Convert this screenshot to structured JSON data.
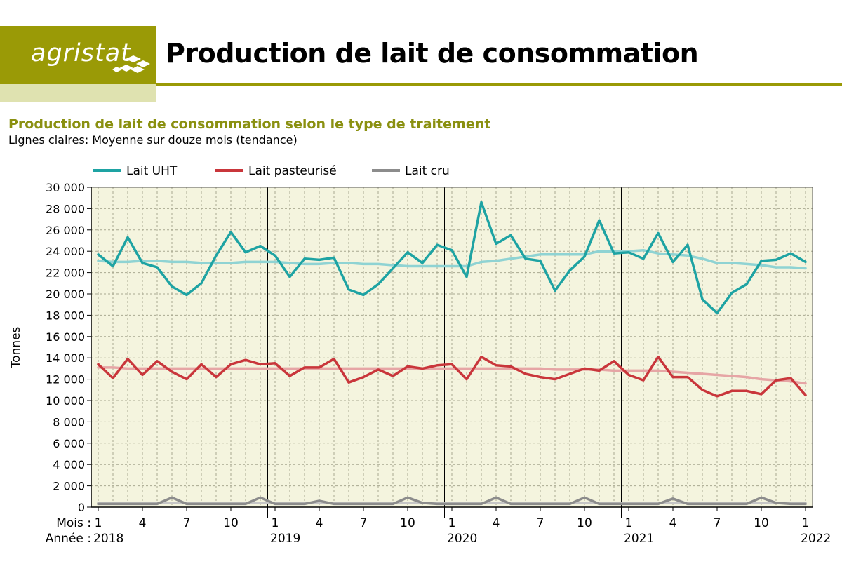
{
  "header": {
    "logo_text": "agristat",
    "title": "Production de lait de consommation"
  },
  "colors": {
    "brand": "#9a9a06",
    "uht": "#1ea3a3",
    "uht_trend": "#8fd3d3",
    "past": "#c9363b",
    "past_trend": "#e6a5a5",
    "raw": "#8c8c8c",
    "raw_trend": "#c6c6c6",
    "plot_bg": "#f4f4de"
  },
  "chart_data": {
    "type": "line",
    "title": "Production de lait de consommation selon le type de traitement",
    "subtitle": "Lignes claires: Moyenne sur douze mois (tendance)",
    "ylabel": "Tonnes",
    "ylim": [
      0,
      30000
    ],
    "yticks": [
      "0",
      "2 000",
      "4 000",
      "6 000",
      "8 000",
      "10 000",
      "12 000",
      "14 000",
      "16 000",
      "18 000",
      "20 000",
      "22 000",
      "24 000",
      "26 000",
      "28 000",
      "30 000"
    ],
    "x_month_prefix": "Mois :",
    "x_year_prefix": "Année :",
    "month_ticks": [
      "1",
      "4",
      "7",
      "10"
    ],
    "years": [
      "2018",
      "2019",
      "2020",
      "2021",
      "2022"
    ],
    "x_start": "2018-01",
    "x_end": "2022-01",
    "grid": true,
    "legend": "top",
    "series": [
      {
        "name": "Lait UHT",
        "values": [
          23700,
          22600,
          25300,
          22900,
          22500,
          20700,
          19900,
          21000,
          23600,
          25800,
          23900,
          24500,
          23600,
          21600,
          23300,
          23200,
          23400,
          20400,
          19900,
          20900,
          22400,
          23900,
          22900,
          24600,
          24100,
          21600,
          28600,
          24700,
          25500,
          23300,
          23100,
          20300,
          22200,
          23500,
          26900,
          23800,
          23900,
          23300,
          25700,
          23000,
          24600,
          19500,
          18200,
          20100,
          20900,
          23100,
          23200,
          23800,
          23000
        ]
      },
      {
        "name": "Lait UHT (tendance)",
        "values": [
          23100,
          23000,
          23000,
          23100,
          23100,
          23000,
          23000,
          22900,
          22900,
          22900,
          23000,
          23000,
          23000,
          22900,
          22800,
          22800,
          22900,
          22900,
          22800,
          22800,
          22700,
          22600,
          22600,
          22600,
          22600,
          22600,
          23000,
          23100,
          23300,
          23500,
          23700,
          23700,
          23700,
          23700,
          24000,
          24000,
          24000,
          24100,
          23800,
          23700,
          23600,
          23300,
          22900,
          22900,
          22800,
          22700,
          22500,
          22500,
          22400
        ]
      },
      {
        "name": "Lait pasteurisé",
        "values": [
          13400,
          12100,
          13900,
          12400,
          13700,
          12700,
          12000,
          13400,
          12200,
          13400,
          13800,
          13400,
          13500,
          12300,
          13100,
          13100,
          13900,
          11700,
          12200,
          12900,
          12300,
          13200,
          13000,
          13300,
          13400,
          12000,
          14100,
          13300,
          13200,
          12500,
          12200,
          12000,
          12500,
          13000,
          12800,
          13700,
          12400,
          11900,
          14100,
          12200,
          12200,
          11000,
          10400,
          10900,
          10900,
          10600,
          11900,
          12100,
          10500
        ]
      },
      {
        "name": "Lait pasteurisé (tendance)",
        "values": [
          13100,
          13100,
          13000,
          13000,
          13000,
          13000,
          13000,
          13000,
          13000,
          13000,
          13000,
          13000,
          13000,
          13000,
          13000,
          13000,
          13000,
          13000,
          13000,
          13000,
          13000,
          13000,
          13000,
          13000,
          13000,
          13000,
          13000,
          13000,
          13000,
          13000,
          13000,
          12900,
          12900,
          12900,
          12900,
          12800,
          12800,
          12800,
          12800,
          12700,
          12600,
          12500,
          12400,
          12300,
          12200,
          12000,
          11900,
          11800,
          11600
        ]
      },
      {
        "name": "Lait cru",
        "values": [
          300,
          300,
          300,
          300,
          300,
          900,
          300,
          300,
          300,
          300,
          300,
          900,
          300,
          300,
          300,
          600,
          300,
          300,
          300,
          300,
          300,
          900,
          400,
          300,
          300,
          300,
          300,
          900,
          300,
          300,
          300,
          300,
          300,
          900,
          300,
          300,
          300,
          300,
          300,
          800,
          300,
          300,
          300,
          300,
          300,
          900,
          400,
          300,
          300
        ]
      },
      {
        "name": "Lait cru (tendance)",
        "values": [
          400,
          400,
          400,
          400,
          400,
          400,
          400,
          400,
          400,
          400,
          400,
          400,
          400,
          400,
          400,
          400,
          400,
          400,
          400,
          400,
          400,
          400,
          400,
          400,
          400,
          400,
          400,
          400,
          400,
          400,
          400,
          400,
          400,
          400,
          400,
          400,
          400,
          400,
          400,
          400,
          400,
          400,
          400,
          400,
          400,
          400,
          400,
          400,
          400
        ]
      }
    ],
    "legend_entries": [
      "Lait UHT",
      "Lait pasteurisé",
      "Lait cru"
    ]
  }
}
